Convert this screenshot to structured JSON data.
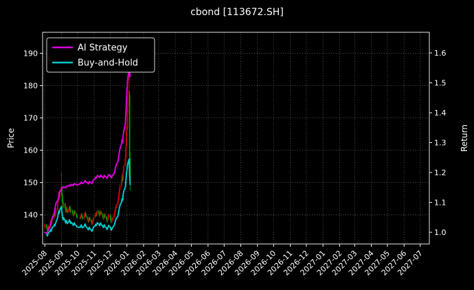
{
  "title": "cbond [113672.SH]",
  "axes": {
    "left_label": "Price",
    "right_label": "Return",
    "price_ticks": [
      140,
      150,
      160,
      170,
      180,
      190
    ],
    "return_ticks": [
      1.0,
      1.1,
      1.2,
      1.3,
      1.4,
      1.5,
      1.6
    ],
    "x_ticks": [
      "2025-08",
      "2025-09",
      "2025-10",
      "2025-11",
      "2025-12",
      "2026-01",
      "2026-02",
      "2026-03",
      "2026-04",
      "2026-05",
      "2026-06",
      "2026-07",
      "2026-08",
      "2026-09",
      "2026-10",
      "2026-11",
      "2026-12",
      "2027-01",
      "2027-02",
      "2027-03",
      "2027-04",
      "2027-05",
      "2027-06",
      "2027-07"
    ],
    "x_domain": [
      "2025-07-28",
      "2027-07-18"
    ],
    "price_domain": [
      131,
      196.5
    ],
    "return_domain": [
      0.961,
      1.669
    ]
  },
  "legend": [
    {
      "label": "AI Strategy",
      "color": "#dd00dd"
    },
    {
      "label": "Buy-and-Hold",
      "color": "#00c8c8"
    }
  ],
  "colors": {
    "background": "#000000",
    "text": "#ffffff",
    "grid": "#9e9e9e",
    "spine": "#e8e8e8",
    "up": "#d40000",
    "down": "#00a000",
    "ai": "#dd00dd",
    "bh": "#00c8c8"
  },
  "chart_data": {
    "type": "candlestick",
    "title": "cbond [113672.SH]",
    "ylabel_left": "Price",
    "ylabel_right": "Return",
    "grid": true,
    "legend_position": "upper-left",
    "candles_format": [
      "date",
      "open",
      "high",
      "low",
      "close"
    ],
    "up_convention": "red-up-green-down",
    "candles": [
      [
        "2025-08-01",
        136.2,
        137.3,
        135.6,
        136.8
      ],
      [
        "2025-08-04",
        136.9,
        137.2,
        136.0,
        136.5
      ],
      [
        "2025-08-05",
        136.4,
        136.8,
        135.3,
        135.8
      ],
      [
        "2025-08-06",
        135.9,
        136.2,
        134.6,
        135.2
      ],
      [
        "2025-08-07",
        135.1,
        136.4,
        134.8,
        136.0
      ],
      [
        "2025-08-08",
        136.1,
        137.0,
        135.7,
        136.6
      ],
      [
        "2025-08-11",
        136.5,
        137.6,
        136.2,
        137.2
      ],
      [
        "2025-08-12",
        137.3,
        138.4,
        137.0,
        138.0
      ],
      [
        "2025-08-13",
        138.1,
        138.5,
        137.0,
        137.4
      ],
      [
        "2025-08-14",
        137.5,
        138.6,
        137.2,
        138.2
      ],
      [
        "2025-08-15",
        138.3,
        139.4,
        138.0,
        139.0
      ],
      [
        "2025-08-18",
        139.1,
        140.0,
        138.7,
        139.6
      ],
      [
        "2025-08-19",
        139.7,
        140.8,
        139.3,
        140.4
      ],
      [
        "2025-08-20",
        140.5,
        140.9,
        139.4,
        139.8
      ],
      [
        "2025-08-21",
        139.9,
        141.2,
        139.5,
        140.8
      ],
      [
        "2025-08-22",
        140.9,
        142.0,
        140.5,
        141.5
      ],
      [
        "2025-08-25",
        141.6,
        144.0,
        141.2,
        143.5
      ],
      [
        "2025-08-26",
        143.6,
        145.5,
        143.0,
        145.0
      ],
      [
        "2025-08-27",
        145.1,
        147.2,
        144.6,
        146.5
      ],
      [
        "2025-08-28",
        146.6,
        147.0,
        145.0,
        145.5
      ],
      [
        "2025-08-29",
        145.6,
        147.8,
        145.2,
        147.0
      ],
      [
        "2025-09-01",
        147.2,
        153.2,
        146.6,
        148.5
      ],
      [
        "2025-09-02",
        148.3,
        149.0,
        145.5,
        146.0
      ],
      [
        "2025-09-03",
        145.8,
        146.4,
        143.4,
        144.0
      ],
      [
        "2025-09-04",
        143.9,
        144.4,
        142.0,
        142.5
      ],
      [
        "2025-09-05",
        142.6,
        144.0,
        142.2,
        143.5
      ],
      [
        "2025-09-08",
        143.4,
        143.8,
        141.6,
        142.0
      ],
      [
        "2025-09-09",
        141.9,
        142.3,
        140.6,
        141.0
      ],
      [
        "2025-09-10",
        141.1,
        142.6,
        140.8,
        142.2
      ],
      [
        "2025-09-11",
        142.1,
        142.5,
        141.1,
        141.5
      ],
      [
        "2025-09-12",
        141.4,
        141.8,
        140.4,
        140.8
      ],
      [
        "2025-09-15",
        140.9,
        142.2,
        140.6,
        141.8
      ],
      [
        "2025-09-16",
        141.9,
        142.9,
        141.5,
        142.5
      ],
      [
        "2025-09-17",
        142.4,
        142.8,
        141.2,
        141.6
      ],
      [
        "2025-09-18",
        141.5,
        141.9,
        140.5,
        140.9
      ],
      [
        "2025-09-19",
        141.0,
        141.8,
        140.7,
        141.4
      ],
      [
        "2025-09-22",
        141.3,
        141.7,
        140.2,
        140.6
      ],
      [
        "2025-09-23",
        140.5,
        140.9,
        139.5,
        139.9
      ],
      [
        "2025-09-24",
        140.0,
        140.9,
        139.7,
        140.5
      ],
      [
        "2025-09-25",
        140.6,
        141.6,
        140.3,
        141.2
      ],
      [
        "2025-09-26",
        141.1,
        141.5,
        140.0,
        140.4
      ],
      [
        "2025-09-29",
        140.3,
        140.7,
        139.4,
        139.8
      ],
      [
        "2025-09-30",
        139.7,
        140.1,
        138.8,
        139.2
      ],
      [
        "2025-10-06",
        139.1,
        139.5,
        138.6,
        139.0
      ],
      [
        "2025-10-07",
        139.1,
        140.0,
        138.8,
        139.6
      ],
      [
        "2025-10-08",
        139.7,
        140.6,
        139.4,
        140.2
      ],
      [
        "2025-10-09",
        140.1,
        140.5,
        139.1,
        139.5
      ],
      [
        "2025-10-10",
        139.4,
        139.8,
        138.4,
        138.8
      ],
      [
        "2025-10-13",
        138.9,
        139.8,
        138.6,
        139.4
      ],
      [
        "2025-10-14",
        139.5,
        140.4,
        139.2,
        140.0
      ],
      [
        "2025-10-15",
        140.1,
        141.0,
        139.8,
        140.6
      ],
      [
        "2025-10-16",
        140.5,
        140.9,
        139.6,
        140.0
      ],
      [
        "2025-10-17",
        139.9,
        140.3,
        138.9,
        139.3
      ],
      [
        "2025-10-20",
        139.2,
        139.6,
        138.2,
        138.6
      ],
      [
        "2025-10-21",
        138.5,
        138.9,
        137.5,
        137.9
      ],
      [
        "2025-10-22",
        138.0,
        138.9,
        137.7,
        138.5
      ],
      [
        "2025-10-23",
        138.6,
        139.5,
        138.3,
        139.1
      ],
      [
        "2025-10-24",
        139.0,
        139.4,
        138.0,
        138.4
      ],
      [
        "2025-10-27",
        138.3,
        138.7,
        137.4,
        137.8
      ],
      [
        "2025-10-28",
        137.7,
        138.1,
        136.8,
        137.2
      ],
      [
        "2025-10-29",
        137.3,
        138.2,
        137.0,
        137.8
      ],
      [
        "2025-10-30",
        137.9,
        138.9,
        137.6,
        138.5
      ],
      [
        "2025-10-31",
        138.6,
        139.6,
        138.3,
        139.2
      ],
      [
        "2025-11-03",
        139.3,
        140.2,
        139.0,
        139.8
      ],
      [
        "2025-11-04",
        139.9,
        140.9,
        139.6,
        140.5
      ],
      [
        "2025-11-05",
        140.4,
        140.8,
        139.5,
        139.9
      ],
      [
        "2025-11-06",
        140.0,
        141.0,
        139.7,
        140.6
      ],
      [
        "2025-11-07",
        140.7,
        141.6,
        140.4,
        141.2
      ],
      [
        "2025-11-10",
        141.1,
        141.5,
        140.1,
        140.5
      ],
      [
        "2025-11-11",
        140.4,
        140.8,
        139.4,
        139.8
      ],
      [
        "2025-11-12",
        139.9,
        140.8,
        139.6,
        140.4
      ],
      [
        "2025-11-13",
        140.5,
        141.4,
        140.2,
        141.0
      ],
      [
        "2025-11-14",
        140.9,
        141.3,
        139.9,
        140.3
      ],
      [
        "2025-11-17",
        140.2,
        140.6,
        139.2,
        139.6
      ],
      [
        "2025-11-18",
        139.5,
        139.9,
        138.5,
        138.9
      ],
      [
        "2025-11-19",
        139.0,
        139.9,
        138.7,
        139.5
      ],
      [
        "2025-11-20",
        139.6,
        140.6,
        139.3,
        140.2
      ],
      [
        "2025-11-21",
        140.1,
        140.5,
        139.0,
        139.4
      ],
      [
        "2025-11-24",
        139.3,
        139.7,
        138.3,
        138.7
      ],
      [
        "2025-11-25",
        138.6,
        139.0,
        137.6,
        138.0
      ],
      [
        "2025-11-26",
        138.1,
        139.0,
        137.8,
        138.6
      ],
      [
        "2025-11-27",
        138.7,
        139.7,
        138.4,
        139.3
      ],
      [
        "2025-11-28",
        139.4,
        140.4,
        139.1,
        140.0
      ],
      [
        "2025-12-01",
        139.9,
        140.3,
        138.8,
        139.2
      ],
      [
        "2025-12-02",
        139.1,
        139.5,
        138.1,
        138.5
      ],
      [
        "2025-12-03",
        138.4,
        138.8,
        137.4,
        137.8
      ],
      [
        "2025-12-04",
        137.9,
        138.8,
        137.6,
        138.4
      ],
      [
        "2025-12-05",
        138.5,
        139.4,
        138.2,
        139.0
      ],
      [
        "2025-12-08",
        139.1,
        140.2,
        138.8,
        139.8
      ],
      [
        "2025-12-09",
        139.9,
        141.0,
        139.6,
        140.6
      ],
      [
        "2025-12-10",
        140.7,
        141.8,
        140.4,
        141.4
      ],
      [
        "2025-12-11",
        141.5,
        142.6,
        141.2,
        142.2
      ],
      [
        "2025-12-12",
        142.3,
        143.4,
        142.0,
        143.0
      ],
      [
        "2025-12-15",
        143.1,
        144.5,
        142.8,
        144.0
      ],
      [
        "2025-12-16",
        144.1,
        145.7,
        143.8,
        145.2
      ],
      [
        "2025-12-17",
        145.3,
        147.0,
        145.0,
        146.5
      ],
      [
        "2025-12-18",
        146.6,
        148.3,
        146.2,
        147.8
      ],
      [
        "2025-12-19",
        147.9,
        149.5,
        147.5,
        149.0
      ],
      [
        "2025-12-22",
        149.1,
        151.0,
        148.7,
        150.5
      ],
      [
        "2025-12-23",
        150.6,
        152.6,
        150.2,
        152.0
      ],
      [
        "2025-12-24",
        152.1,
        152.5,
        150.3,
        150.8
      ],
      [
        "2025-12-25",
        150.9,
        154.0,
        150.5,
        153.5
      ],
      [
        "2025-12-26",
        153.6,
        155.6,
        153.2,
        155.0
      ],
      [
        "2025-12-29",
        155.2,
        158.5,
        154.8,
        157.5
      ],
      [
        "2025-12-30",
        157.8,
        162.0,
        157.0,
        161.0
      ],
      [
        "2025-12-31",
        161.2,
        167.5,
        160.5,
        166.0
      ],
      [
        "2026-01-02",
        166.5,
        181.0,
        165.8,
        173.0
      ],
      [
        "2026-01-05",
        173.5,
        186.0,
        171.0,
        178.5
      ],
      [
        "2026-01-06",
        177.0,
        178.0,
        156.5,
        158.0
      ],
      [
        "2026-01-07",
        158.0,
        159.5,
        147.5,
        150.5
      ]
    ],
    "series": [
      {
        "name": "AI Strategy",
        "axis": "return",
        "color": "#dd00dd",
        "values": [
          1.0,
          0.998,
          0.996,
          1.0,
          1.005,
          1.01,
          1.018,
          1.026,
          1.034,
          1.042,
          1.05,
          1.058,
          1.068,
          1.078,
          1.088,
          1.098,
          1.105,
          1.112,
          1.12,
          1.128,
          1.135,
          1.145,
          1.15,
          1.148,
          1.15,
          1.152,
          1.15,
          1.148,
          1.152,
          1.155,
          1.153,
          1.156,
          1.158,
          1.155,
          1.157,
          1.16,
          1.158,
          1.156,
          1.16,
          1.163,
          1.161,
          1.16,
          1.158,
          1.162,
          1.165,
          1.168,
          1.166,
          1.163,
          1.166,
          1.17,
          1.173,
          1.17,
          1.168,
          1.165,
          1.162,
          1.166,
          1.17,
          1.168,
          1.165,
          1.163,
          1.167,
          1.172,
          1.176,
          1.18,
          1.185,
          1.182,
          1.186,
          1.19,
          1.186,
          1.183,
          1.187,
          1.191,
          1.188,
          1.184,
          1.181,
          1.185,
          1.19,
          1.187,
          1.184,
          1.18,
          1.184,
          1.189,
          1.193,
          1.19,
          1.186,
          1.182,
          1.186,
          1.19,
          1.196,
          1.203,
          1.21,
          1.218,
          1.226,
          1.235,
          1.245,
          1.256,
          1.268,
          1.28,
          1.295,
          1.31,
          1.3,
          1.322,
          1.338,
          1.36,
          1.395,
          1.44,
          1.5,
          1.55,
          1.535,
          1.52
        ]
      },
      {
        "name": "Buy-and-Hold",
        "axis": "return",
        "color": "#00c8c8",
        "values": [
          1.0,
          0.998,
          0.993,
          0.988,
          0.994,
          0.999,
          1.003,
          1.009,
          1.004,
          1.01,
          1.016,
          1.02,
          1.026,
          1.022,
          1.029,
          1.034,
          1.049,
          1.06,
          1.071,
          1.064,
          1.075,
          1.086,
          1.067,
          1.053,
          1.042,
          1.049,
          1.038,
          1.031,
          1.04,
          1.034,
          1.029,
          1.037,
          1.042,
          1.035,
          1.03,
          1.034,
          1.028,
          1.023,
          1.027,
          1.032,
          1.026,
          1.022,
          1.018,
          1.016,
          1.02,
          1.025,
          1.02,
          1.015,
          1.019,
          1.023,
          1.028,
          1.023,
          1.018,
          1.013,
          1.008,
          1.012,
          1.017,
          1.012,
          1.007,
          1.003,
          1.008,
          1.013,
          1.018,
          1.022,
          1.027,
          1.023,
          1.028,
          1.032,
          1.027,
          1.022,
          1.026,
          1.031,
          1.026,
          1.021,
          1.016,
          1.02,
          1.025,
          1.019,
          1.014,
          1.009,
          1.013,
          1.018,
          1.023,
          1.017,
          1.012,
          1.007,
          1.011,
          1.016,
          1.022,
          1.028,
          1.034,
          1.04,
          1.046,
          1.053,
          1.062,
          1.071,
          1.081,
          1.09,
          1.101,
          1.112,
          1.106,
          1.126,
          1.137,
          1.15,
          1.172,
          1.195,
          1.225,
          1.245,
          1.19,
          1.16
        ]
      }
    ]
  }
}
